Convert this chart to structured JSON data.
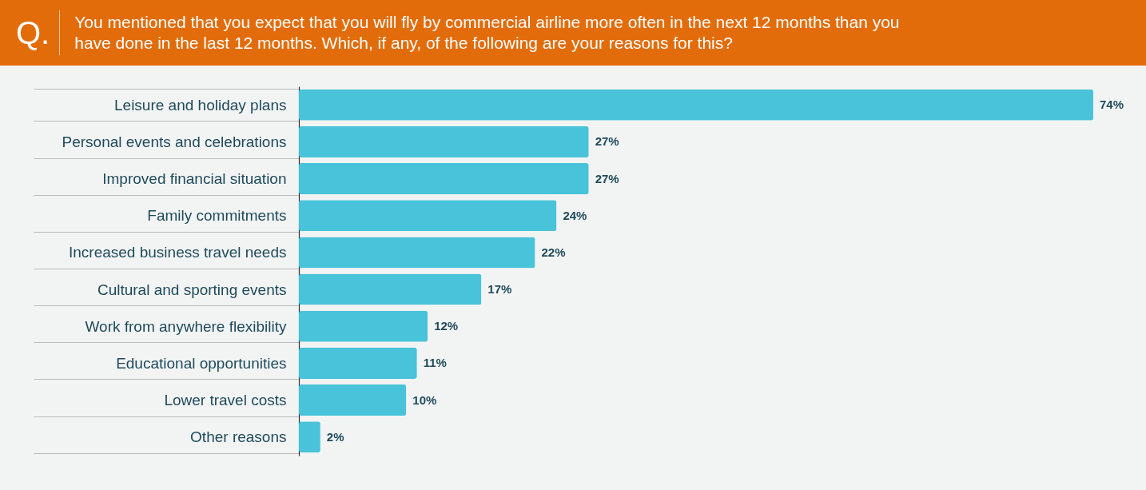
{
  "chart_data": {
    "type": "bar",
    "orientation": "horizontal",
    "title": "You mentioned that you expect that you will fly by commercial airline more often in the next 12 months than you have done in the last 12 months. Which, if any, of the following are your reasons for this?",
    "annotations": [
      "Q."
    ],
    "categories": [
      "Leisure and holiday plans",
      "Personal events and celebrations",
      "Improved financial situation",
      "Family commitments",
      "Increased business travel needs",
      "Cultural and sporting events",
      "Work from anywhere flexibility",
      "Educational opportunities",
      "Lower travel costs",
      "Other reasons"
    ],
    "values": [
      74,
      27,
      27,
      24,
      22,
      17,
      12,
      11,
      10,
      2
    ],
    "value_labels": [
      "74%",
      "27%",
      "27%",
      "24%",
      "22%",
      "17%",
      "12%",
      "11%",
      "10%",
      "2%"
    ],
    "color": "#48c3d9"
  }
}
